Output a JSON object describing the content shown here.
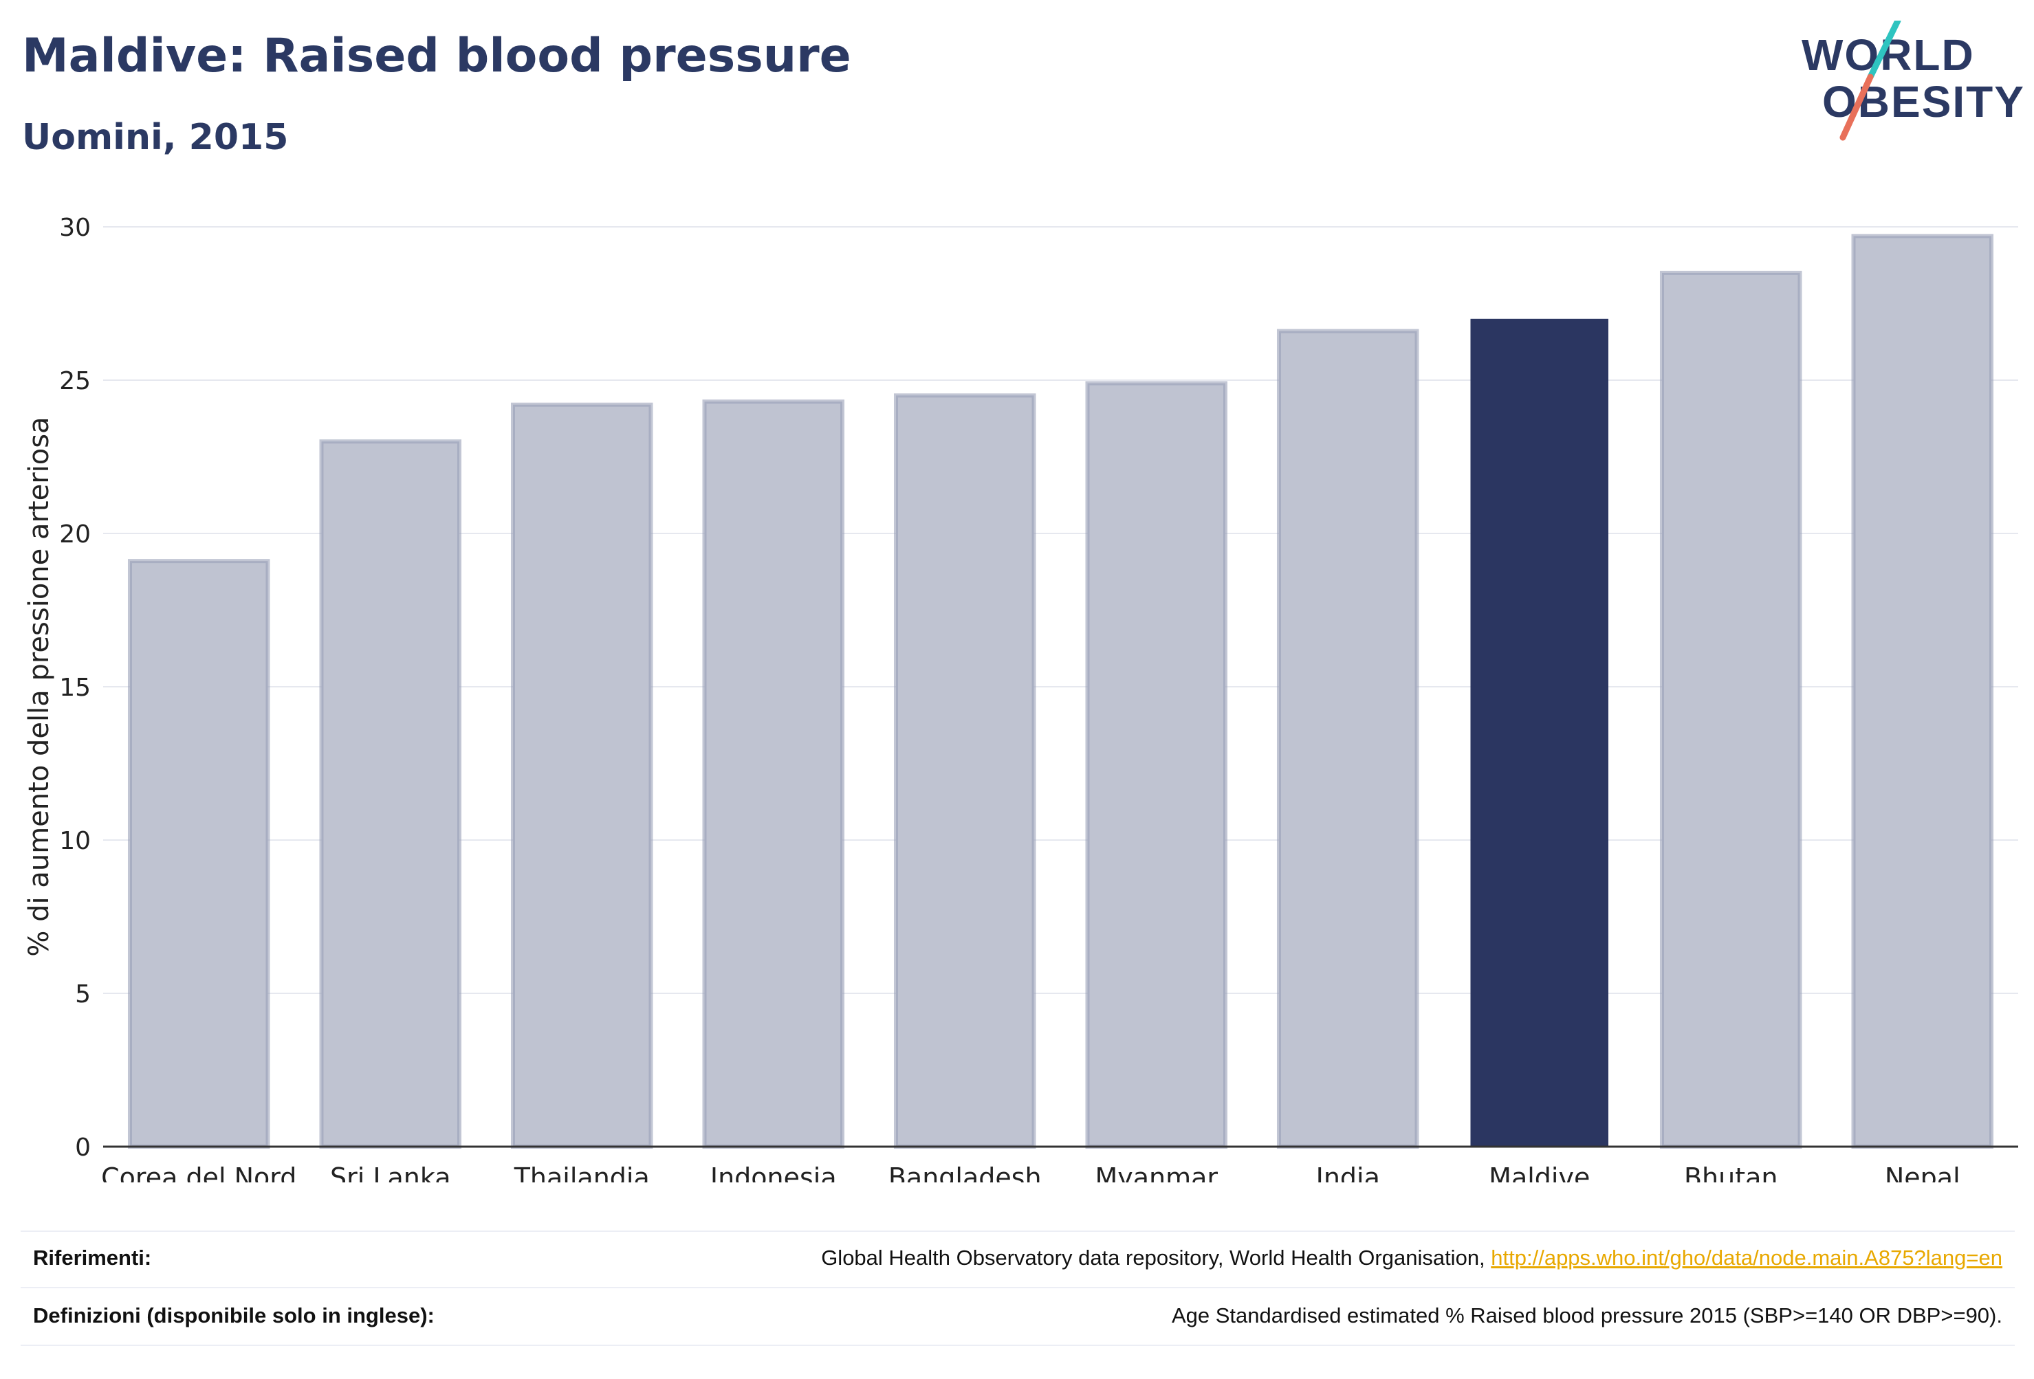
{
  "header": {
    "title": "Maldive: Raised blood pressure",
    "subtitle": "Uomini, 2015"
  },
  "logo": {
    "line1": "WORLD",
    "line2": "OBESITY",
    "slash_colors": [
      "#2ec4c0",
      "#e8705a"
    ],
    "text_color": "#2b3963"
  },
  "chart_data": {
    "type": "bar",
    "categories": [
      "Corea del Nord",
      "Sri Lanka",
      "Thailandia",
      "Indonesia",
      "Bangladesh",
      "Myanmar",
      "India",
      "Maldive",
      "Bhutan",
      "Nepal"
    ],
    "values": [
      19.1,
      23.0,
      24.2,
      24.3,
      24.5,
      24.9,
      26.6,
      27.0,
      28.5,
      29.7
    ],
    "highlight": "Maldive",
    "title": "",
    "xlabel": "",
    "ylabel": "% di aumento della pressione arteriosa",
    "ylim": [
      0,
      30
    ],
    "yticks": [
      0,
      5,
      10,
      15,
      20,
      25,
      30
    ],
    "grid": true,
    "colors": {
      "bar": "#bfc3d1",
      "bar_border": "#9aa0b8",
      "highlight": "#2b3661",
      "grid": "#e6e8ef",
      "axis": "#333333"
    }
  },
  "footer": {
    "references_label": "Riferimenti:",
    "references_text": "Global Health Observatory data repository, World Health Organisation, ",
    "references_link": "http://apps.who.int/gho/data/node.main.A875?lang=en",
    "definitions_label": "Definizioni (disponibile solo in inglese):",
    "definitions_text": "Age Standardised estimated % Raised blood pressure 2015 (SBP>=140 OR DBP>=90)."
  }
}
